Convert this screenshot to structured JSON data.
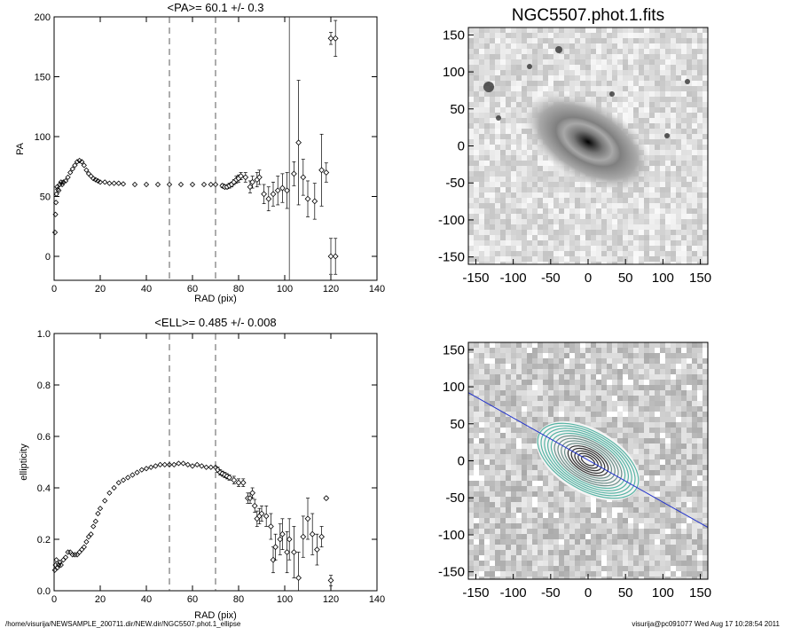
{
  "footer": {
    "left": "/home/visurija/NEWSAMPLE_200711.dir/NEW.dir/NGC5507.phot.1_ellipse",
    "right": "visurija@pc091077  Wed Aug 17 10:28:54 2011"
  },
  "chart_data": [
    {
      "type": "scatter",
      "title": "<PA>=  60.1 +/-   0.3",
      "xlabel": "RAD (pix)",
      "ylabel": "PA",
      "xlim": [
        0,
        140
      ],
      "ylim": [
        -20,
        200
      ],
      "xticks": [
        0,
        20,
        40,
        60,
        80,
        100,
        120,
        140
      ],
      "yticks": [
        0,
        50,
        100,
        150,
        200
      ],
      "dashed_vlines": [
        50,
        70
      ],
      "solid_vline": 102,
      "dense_curve": [
        [
          0.4,
          20
        ],
        [
          0.6,
          35
        ],
        [
          0.8,
          45
        ],
        [
          1,
          52
        ],
        [
          1.3,
          58
        ],
        [
          1.6,
          56
        ],
        [
          2,
          55
        ],
        [
          2.5,
          60
        ],
        [
          3,
          62
        ],
        [
          3.5,
          60
        ],
        [
          4,
          62
        ],
        [
          5,
          63
        ],
        [
          6,
          66
        ],
        [
          7,
          70
        ],
        [
          8,
          73
        ],
        [
          9,
          76
        ],
        [
          10,
          79
        ],
        [
          11,
          80
        ],
        [
          12,
          79
        ],
        [
          13,
          76
        ],
        [
          14,
          72
        ],
        [
          15,
          69
        ],
        [
          16,
          67
        ],
        [
          17,
          65
        ],
        [
          18,
          64
        ],
        [
          19,
          63
        ],
        [
          20,
          62
        ],
        [
          22,
          62
        ],
        [
          24,
          61
        ],
        [
          26,
          61
        ],
        [
          28,
          61
        ],
        [
          30,
          60.5
        ],
        [
          35,
          60
        ],
        [
          40,
          60
        ],
        [
          45,
          60
        ],
        [
          50,
          60
        ],
        [
          55,
          60
        ],
        [
          60,
          60
        ],
        [
          65,
          60
        ],
        [
          68,
          60
        ],
        [
          70,
          60
        ]
      ],
      "errorbar_points": [
        {
          "x": 73,
          "y": 59,
          "err": 1.5
        },
        {
          "x": 74,
          "y": 58,
          "err": 1.5
        },
        {
          "x": 75,
          "y": 58,
          "err": 1.5
        },
        {
          "x": 76,
          "y": 59,
          "err": 2
        },
        {
          "x": 77,
          "y": 60,
          "err": 2
        },
        {
          "x": 78,
          "y": 62,
          "err": 2
        },
        {
          "x": 79,
          "y": 64,
          "err": 3
        },
        {
          "x": 80,
          "y": 65,
          "err": 3
        },
        {
          "x": 81,
          "y": 67,
          "err": 3
        },
        {
          "x": 83,
          "y": 66,
          "err": 4
        },
        {
          "x": 85,
          "y": 58,
          "err": 5
        },
        {
          "x": 86,
          "y": 62,
          "err": 5
        },
        {
          "x": 88,
          "y": 64,
          "err": 6
        },
        {
          "x": 89,
          "y": 66,
          "err": 6
        },
        {
          "x": 91,
          "y": 52,
          "err": 8
        },
        {
          "x": 93,
          "y": 48,
          "err": 10
        },
        {
          "x": 95,
          "y": 52,
          "err": 10
        },
        {
          "x": 97,
          "y": 55,
          "err": 12
        },
        {
          "x": 99,
          "y": 57,
          "err": 12
        },
        {
          "x": 101,
          "y": 55,
          "err": 15
        },
        {
          "x": 104,
          "y": 69,
          "err": 10
        },
        {
          "x": 106,
          "y": 95,
          "err": 52
        },
        {
          "x": 108,
          "y": 66,
          "err": 15
        },
        {
          "x": 110,
          "y": 48,
          "err": 15
        },
        {
          "x": 113,
          "y": 46,
          "err": 15
        },
        {
          "x": 116,
          "y": 72,
          "err": 30
        },
        {
          "x": 118,
          "y": 70,
          "err": 8
        },
        {
          "x": 120,
          "y": 0,
          "err": 15
        },
        {
          "x": 122,
          "y": 0,
          "err": 15
        },
        {
          "x": 120,
          "y": 182,
          "err": 5
        },
        {
          "x": 122,
          "y": 182,
          "err": 15
        }
      ]
    },
    {
      "type": "scatter",
      "title": "<ELL>= 0.485 +/-  0.008",
      "xlabel": "RAD (pix)",
      "ylabel": "ellipticity",
      "xlim": [
        0,
        140
      ],
      "ylim": [
        0,
        1
      ],
      "xticks": [
        0,
        20,
        40,
        60,
        80,
        100,
        120,
        140
      ],
      "yticks": [
        "0.0",
        "0.2",
        "0.4",
        "0.6",
        "0.8",
        "1.0"
      ],
      "dashed_vlines": [
        50,
        70
      ],
      "dense_curve": [
        [
          0.3,
          0.08
        ],
        [
          0.6,
          0.1
        ],
        [
          1,
          0.12
        ],
        [
          1.5,
          0.09
        ],
        [
          2,
          0.1
        ],
        [
          2.5,
          0.11
        ],
        [
          3,
          0.1
        ],
        [
          4,
          0.12
        ],
        [
          5,
          0.13
        ],
        [
          6,
          0.15
        ],
        [
          7,
          0.15
        ],
        [
          8,
          0.14
        ],
        [
          9,
          0.14
        ],
        [
          10,
          0.14
        ],
        [
          11,
          0.15
        ],
        [
          12,
          0.16
        ],
        [
          13,
          0.17
        ],
        [
          14,
          0.19
        ],
        [
          15,
          0.21
        ],
        [
          16,
          0.22
        ],
        [
          17,
          0.25
        ],
        [
          18,
          0.27
        ],
        [
          19,
          0.3
        ],
        [
          20,
          0.32
        ],
        [
          22,
          0.35
        ],
        [
          24,
          0.38
        ],
        [
          26,
          0.4
        ],
        [
          28,
          0.42
        ],
        [
          30,
          0.43
        ],
        [
          32,
          0.44
        ],
        [
          34,
          0.45
        ],
        [
          36,
          0.46
        ],
        [
          38,
          0.47
        ],
        [
          40,
          0.475
        ],
        [
          42,
          0.48
        ],
        [
          44,
          0.485
        ],
        [
          46,
          0.49
        ],
        [
          48,
          0.49
        ],
        [
          50,
          0.49
        ],
        [
          52,
          0.49
        ],
        [
          54,
          0.495
        ],
        [
          56,
          0.495
        ],
        [
          58,
          0.49
        ],
        [
          60,
          0.485
        ],
        [
          62,
          0.49
        ],
        [
          64,
          0.485
        ],
        [
          66,
          0.48
        ],
        [
          68,
          0.48
        ],
        [
          70,
          0.48
        ]
      ],
      "errorbar_points": [
        {
          "x": 71,
          "y": 0.47,
          "err": 0.01
        },
        {
          "x": 72,
          "y": 0.46,
          "err": 0.01
        },
        {
          "x": 73,
          "y": 0.455,
          "err": 0.01
        },
        {
          "x": 74,
          "y": 0.45,
          "err": 0.01
        },
        {
          "x": 75,
          "y": 0.445,
          "err": 0.01
        },
        {
          "x": 76,
          "y": 0.44,
          "err": 0.01
        },
        {
          "x": 78,
          "y": 0.43,
          "err": 0.015
        },
        {
          "x": 80,
          "y": 0.42,
          "err": 0.015
        },
        {
          "x": 82,
          "y": 0.42,
          "err": 0.015
        },
        {
          "x": 84,
          "y": 0.36,
          "err": 0.02
        },
        {
          "x": 85,
          "y": 0.36,
          "err": 0.02
        },
        {
          "x": 86,
          "y": 0.38,
          "err": 0.02
        },
        {
          "x": 87,
          "y": 0.33,
          "err": 0.025
        },
        {
          "x": 88,
          "y": 0.28,
          "err": 0.03
        },
        {
          "x": 89,
          "y": 0.29,
          "err": 0.03
        },
        {
          "x": 90,
          "y": 0.3,
          "err": 0.03
        },
        {
          "x": 92,
          "y": 0.29,
          "err": 0.04
        },
        {
          "x": 94,
          "y": 0.25,
          "err": 0.05
        },
        {
          "x": 95,
          "y": 0.12,
          "err": 0.05
        },
        {
          "x": 96,
          "y": 0.17,
          "err": 0.05
        },
        {
          "x": 98,
          "y": 0.2,
          "err": 0.06
        },
        {
          "x": 99,
          "y": 0.22,
          "err": 0.06
        },
        {
          "x": 101,
          "y": 0.15,
          "err": 0.08
        },
        {
          "x": 102,
          "y": 0.2,
          "err": 0.08
        },
        {
          "x": 104,
          "y": 0.15,
          "err": 0.1
        },
        {
          "x": 106,
          "y": 0.05,
          "err": 0.1
        },
        {
          "x": 108,
          "y": 0.21,
          "err": 0.08
        },
        {
          "x": 110,
          "y": 0.28,
          "err": 0.08
        },
        {
          "x": 112,
          "y": 0.22,
          "err": 0.08
        },
        {
          "x": 114,
          "y": 0.16,
          "err": 0.06
        },
        {
          "x": 116,
          "y": 0.21,
          "err": 0.04
        },
        {
          "x": 118,
          "y": 0.36,
          "err": 0.005
        },
        {
          "x": 120,
          "y": 0.04,
          "err": 0.02
        }
      ]
    },
    {
      "type": "heatmap",
      "title": "NGC5507.phot.1.fits",
      "xlim": [
        -160,
        160
      ],
      "ylim": [
        -160,
        160
      ],
      "xticks": [
        -150,
        -100,
        -50,
        0,
        50,
        100,
        150
      ],
      "yticks": [
        150,
        100,
        50,
        0,
        -50,
        -100,
        -150
      ],
      "galaxy": {
        "center": [
          0,
          0
        ],
        "pa_deg": 30,
        "ellipticity": 0.485
      }
    },
    {
      "type": "heatmap",
      "title": "",
      "xlim": [
        -160,
        160
      ],
      "ylim": [
        -160,
        160
      ],
      "xticks": [
        -150,
        -100,
        -50,
        0,
        50,
        100,
        150
      ],
      "yticks": [
        150,
        100,
        50,
        0,
        -50,
        -100,
        -150
      ],
      "isophote_count": 14,
      "major_axis_line": [
        [
          -160,
          92
        ],
        [
          160,
          -90
        ]
      ]
    }
  ]
}
